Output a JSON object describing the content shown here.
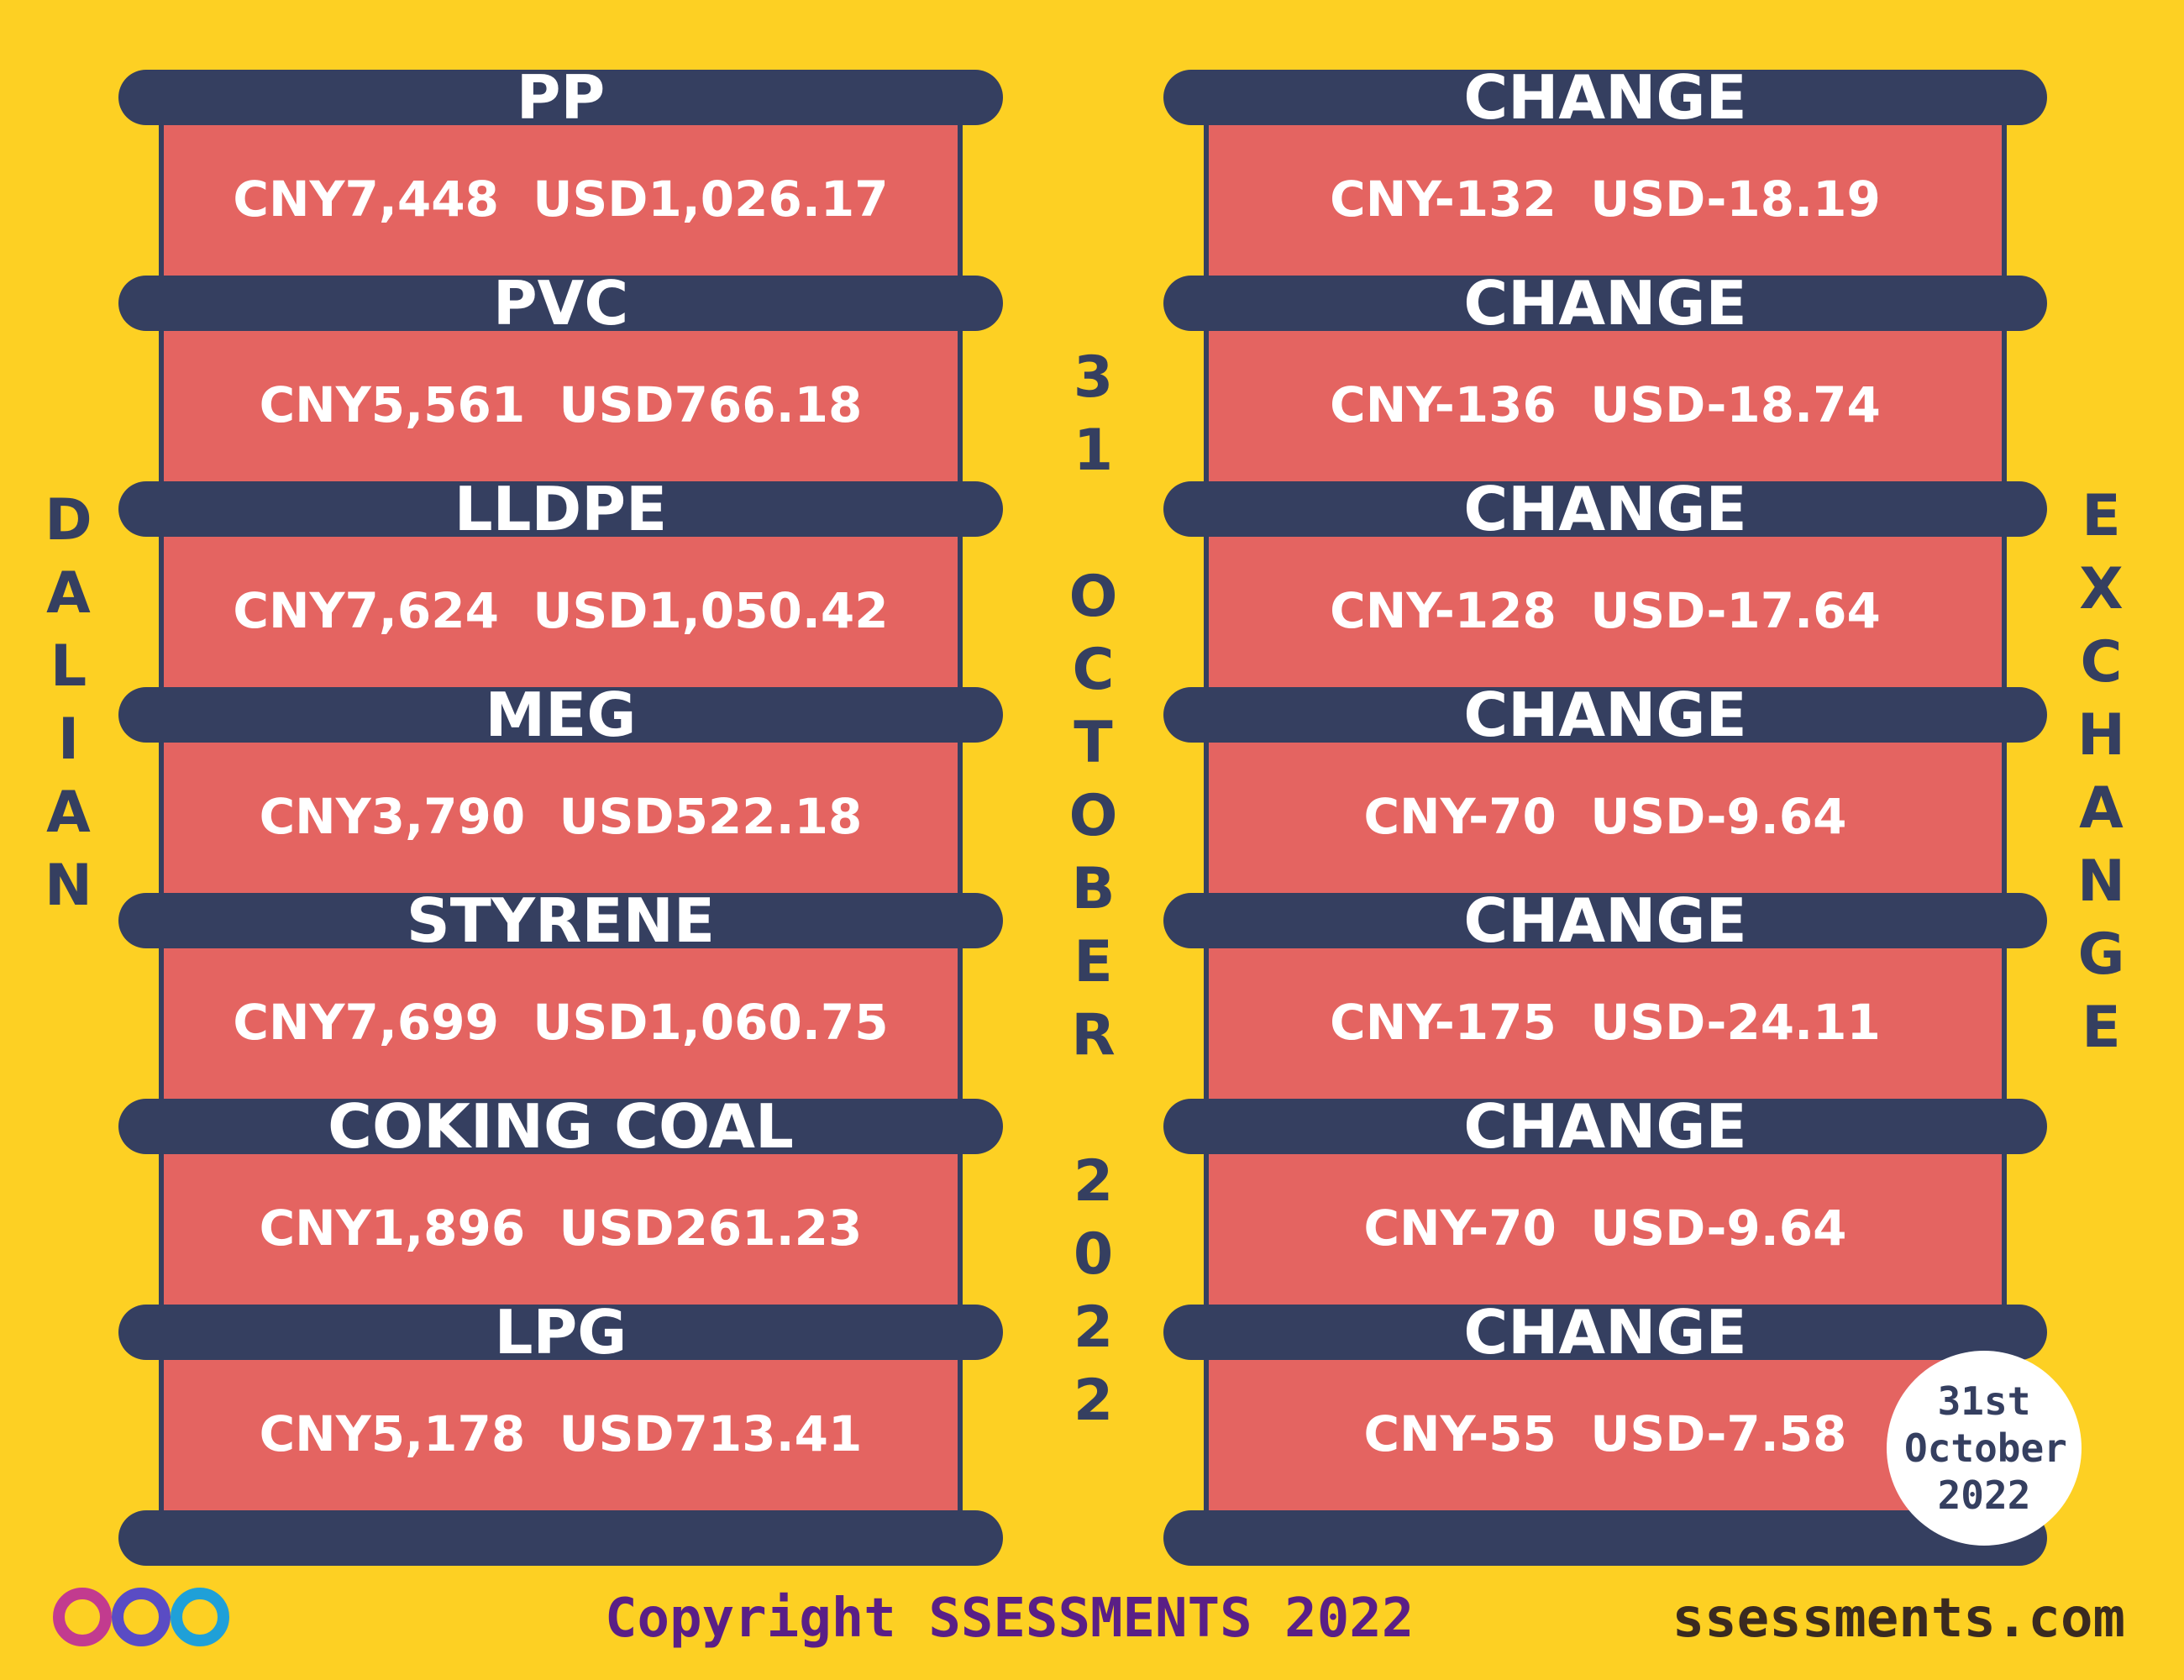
{
  "title_left": "DALIAN",
  "date_vertical": "31 OCTOBER 2022",
  "title_right": "EXCHANGE",
  "products": [
    {
      "name": "PP",
      "price": "CNY7,448  USD1,026.17",
      "change_label": "CHANGE",
      "change": "CNY-132  USD-18.19"
    },
    {
      "name": "PVC",
      "price": "CNY5,561  USD766.18",
      "change_label": "CHANGE",
      "change": "CNY-136  USD-18.74"
    },
    {
      "name": "LLDPE",
      "price": "CNY7,624  USD1,050.42",
      "change_label": "CHANGE",
      "change": "CNY-128  USD-17.64"
    },
    {
      "name": "MEG",
      "price": "CNY3,790  USD522.18",
      "change_label": "CHANGE",
      "change": "CNY-70  USD-9.64"
    },
    {
      "name": "STYRENE",
      "price": "CNY7,699  USD1,060.75",
      "change_label": "CHANGE",
      "change": "CNY-175  USD-24.11"
    },
    {
      "name": "COKING COAL",
      "price": "CNY1,896  USD261.23",
      "change_label": "CHANGE",
      "change": "CNY-70  USD-9.64"
    },
    {
      "name": "LPG",
      "price": "CNY5,178  USD713.41",
      "change_label": "CHANGE",
      "change": "CNY-55  USD-7.58"
    }
  ],
  "badge": "31st October 2022",
  "footer": {
    "copyright": "Copyright SSESSMENTS 2022",
    "website": "ssessments.com"
  }
}
